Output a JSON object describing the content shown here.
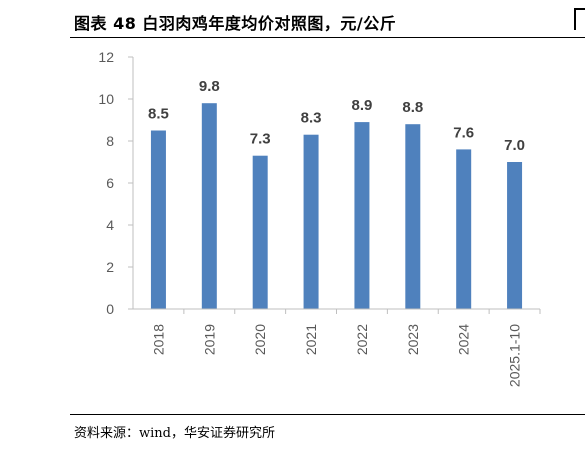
{
  "header": {
    "title": "图表 48 白羽肉鸡年度均价对照图，元/公斤"
  },
  "footer": {
    "source": "资料来源：wind，华安证券研究所"
  },
  "colors": {
    "bar": "#4F81BD",
    "axis": "#BFBFBF",
    "tick_text": "#595959"
  },
  "chart_data": {
    "type": "bar",
    "categories": [
      "2018",
      "2019",
      "2020",
      "2021",
      "2022",
      "2023",
      "2024",
      "2025.1-10"
    ],
    "values": [
      8.5,
      9.8,
      7.3,
      8.3,
      8.9,
      8.8,
      7.6,
      7.0
    ],
    "data_labels": [
      "8.5",
      "9.8",
      "7.3",
      "8.3",
      "8.9",
      "8.8",
      "7.6",
      "7.0"
    ],
    "ylim": [
      0,
      12
    ],
    "yticks": [
      0,
      2,
      4,
      6,
      8,
      10,
      12
    ],
    "grid": false,
    "xlabel": "",
    "ylabel": "",
    "x_tick_rotation": "vertical"
  }
}
